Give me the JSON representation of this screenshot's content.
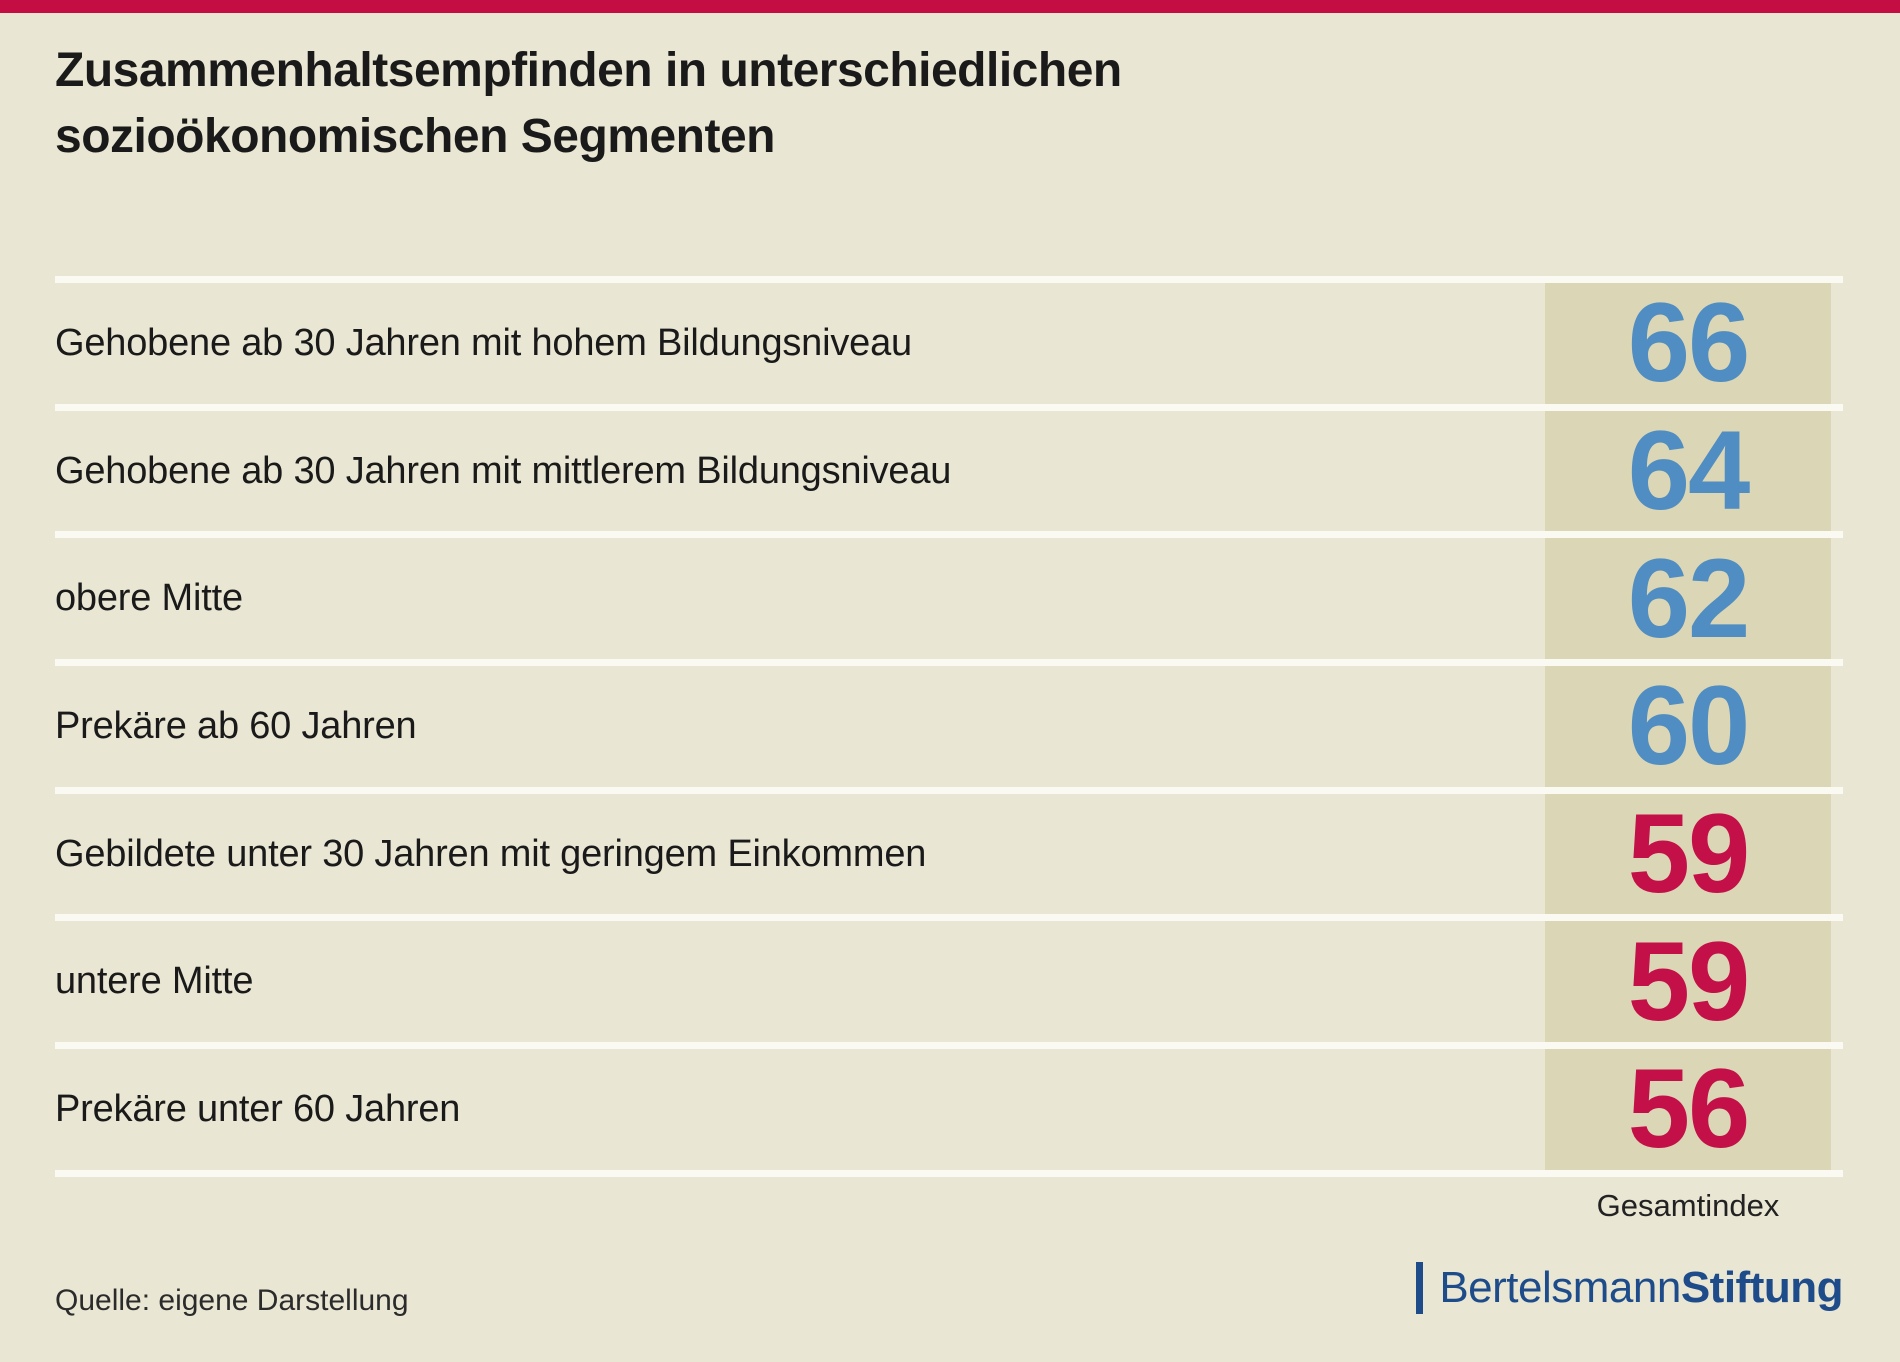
{
  "title": {
    "line1": "Zusammenhaltsempfinden in unterschiedlichen",
    "line2": "sozioökonomischen Segmenten"
  },
  "chart_data": {
    "type": "table",
    "title": "Zusammenhaltsempfinden in unterschiedlichen sozioökonomischen Segmenten",
    "categories": [
      "Gehobene ab 30 Jahren mit hohem Bildungsniveau",
      "Gehobene ab 30 Jahren mit mittlerem Bildungsniveau",
      "obere Mitte",
      "Prekäre ab 60 Jahren",
      "Gebildete unter 30 Jahren mit geringem Einkommen",
      "untere Mitte",
      "Prekäre unter 60 Jahren"
    ],
    "values": [
      66,
      64,
      62,
      60,
      59,
      59,
      56
    ],
    "value_colors": [
      "blue",
      "blue",
      "blue",
      "blue",
      "red",
      "red",
      "red"
    ],
    "value_caption": "Gesamtindex",
    "value_range_shown": [
      56,
      66
    ],
    "legend_position": "none",
    "grid": "white row separators, shaded value column"
  },
  "footer": {
    "source": "Quelle: eigene Darstellung",
    "brand_name": "Bertelsmann",
    "brand_suffix": "Stiftung"
  },
  "colors": {
    "page_bg": "#E9E6D3",
    "strip_bg": "#DBD6B5",
    "separator": "#FBFAF2",
    "accent_blue": "#4F8DC2",
    "accent_red": "#C31049",
    "top_bar": "#C40D42",
    "brand_blue": "#1E4C8A",
    "text": "#1A1A1A"
  }
}
